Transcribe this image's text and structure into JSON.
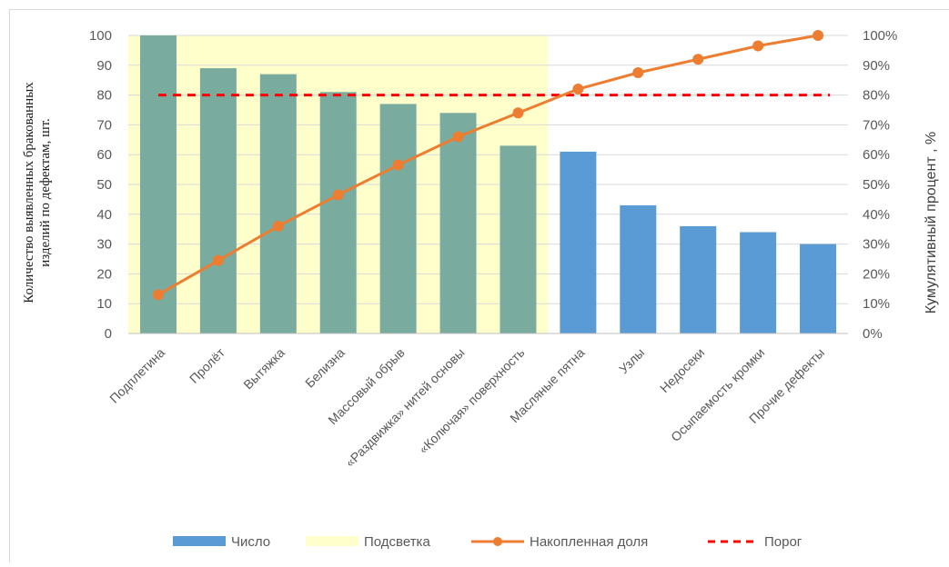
{
  "chart_data": {
    "type": "bar",
    "categories": [
      "Подплетина",
      "Пролёт",
      "Вытяжка",
      "Белизна",
      "Массовый обрыв",
      "«Раздвижка» нитей основы",
      "«Колючая» поверхность",
      "Масляные пятна",
      "Узлы",
      "Недосеки",
      "Осыпаемость кромки",
      "Прочие дефекты"
    ],
    "series": [
      {
        "name": "Число",
        "type": "bar",
        "values": [
          100,
          89,
          87,
          81,
          77,
          74,
          63,
          61,
          43,
          36,
          34,
          30
        ],
        "color": "#5b9bd5"
      },
      {
        "name": "Накопленная доля",
        "type": "line",
        "axis": "right",
        "values": [
          13,
          24.5,
          36,
          46.5,
          56.5,
          66,
          74,
          82,
          87.5,
          92,
          96.5,
          100
        ],
        "color": "#ed7d31"
      },
      {
        "name": "Порог",
        "type": "line",
        "style": "dashed",
        "axis": "right",
        "value": 80,
        "color": "#ff0000"
      }
    ],
    "highlight": {
      "name": "Подсветка",
      "from_category": "Подплетина",
      "to_category": "«Колючая» поверхность",
      "color": "#ffffcc",
      "bar_color": "#7aab9f"
    },
    "ylabel_left": "Количество выявленных бракованных изделий по дефектам, шт.",
    "ylabel_left_lines": [
      "Количество выявленных бракованных",
      "изделий по дефектам, шт."
    ],
    "ylabel_right": "Кумулятивный процент , %",
    "ylim_left": [
      0,
      100
    ],
    "yticks_left": [
      "0",
      "10",
      "20",
      "30",
      "40",
      "50",
      "60",
      "70",
      "80",
      "90",
      "100"
    ],
    "ylim_right": [
      0,
      100
    ],
    "yticks_right": [
      "0%",
      "10%",
      "20%",
      "30%",
      "40%",
      "50%",
      "60%",
      "70%",
      "80%",
      "90%",
      "100%"
    ],
    "grid": true,
    "legend_position": "bottom",
    "legend": [
      "Число",
      "Подсветка",
      "Накопленная доля",
      "Порог"
    ]
  }
}
